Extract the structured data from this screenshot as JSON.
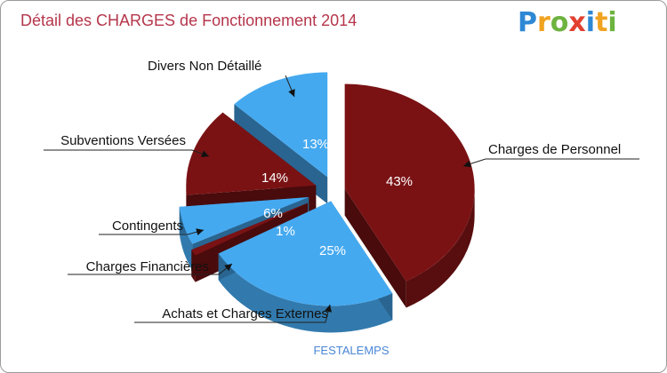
{
  "header": {
    "title": "Détail des CHARGES de Fonctionnement 2014"
  },
  "logo": {
    "text": "Proxiti",
    "letters": [
      "P",
      "r",
      "o",
      "x",
      "i",
      "t",
      "i"
    ],
    "colors": [
      "#2e88d4",
      "#f0a320",
      "#6db33f",
      "#e2402f",
      "#2e88d4",
      "#f0a320",
      "#6db33f"
    ]
  },
  "chart_data": {
    "type": "pie",
    "title": "Détail des CHARGES de Fonctionnement 2014",
    "subtitle": "FESTALEMPS",
    "slices": [
      {
        "label": "Charges de Personnel",
        "value": 43,
        "display": "43%",
        "color": "#7a1214"
      },
      {
        "label": "Achats et Charges Externes",
        "value": 25,
        "display": "25%",
        "color": "#45a9f0"
      },
      {
        "label": "Charges Financières",
        "value": 1,
        "display": "1%",
        "color": "#7a1214"
      },
      {
        "label": "Contingents",
        "value": 6,
        "display": "6%",
        "color": "#45a9f0"
      },
      {
        "label": "Subventions Versées",
        "value": 14,
        "display": "14%",
        "color": "#7a1214"
      },
      {
        "label": "Divers Non Détaillé",
        "value": 13,
        "display": "13%",
        "color": "#45a9f0"
      }
    ]
  }
}
